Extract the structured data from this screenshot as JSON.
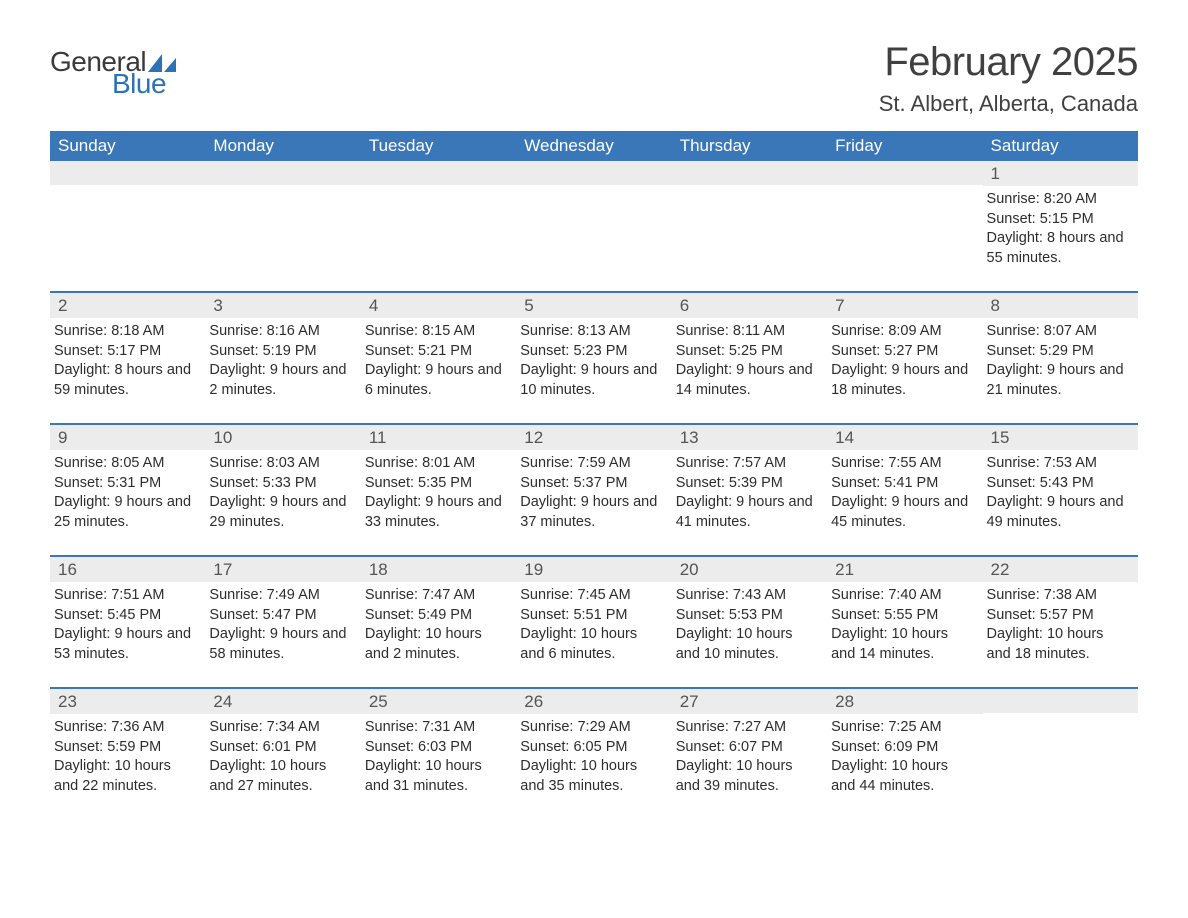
{
  "logo": {
    "general": "General",
    "blue": "Blue",
    "sail_color": "#2e72b5"
  },
  "title": "February 2025",
  "location": "St. Albert, Alberta, Canada",
  "colors": {
    "header_bg": "#3a77b8",
    "header_text": "#ffffff",
    "daynum_bg": "#ececec",
    "border": "#3a77b8",
    "text": "#2d2d2d"
  },
  "weekdays": [
    "Sunday",
    "Monday",
    "Tuesday",
    "Wednesday",
    "Thursday",
    "Friday",
    "Saturday"
  ],
  "weeks": [
    [
      {
        "n": "",
        "sunrise": "",
        "sunset": "",
        "daylight": ""
      },
      {
        "n": "",
        "sunrise": "",
        "sunset": "",
        "daylight": ""
      },
      {
        "n": "",
        "sunrise": "",
        "sunset": "",
        "daylight": ""
      },
      {
        "n": "",
        "sunrise": "",
        "sunset": "",
        "daylight": ""
      },
      {
        "n": "",
        "sunrise": "",
        "sunset": "",
        "daylight": ""
      },
      {
        "n": "",
        "sunrise": "",
        "sunset": "",
        "daylight": ""
      },
      {
        "n": "1",
        "sunrise": "Sunrise: 8:20 AM",
        "sunset": "Sunset: 5:15 PM",
        "daylight": "Daylight: 8 hours and 55 minutes."
      }
    ],
    [
      {
        "n": "2",
        "sunrise": "Sunrise: 8:18 AM",
        "sunset": "Sunset: 5:17 PM",
        "daylight": "Daylight: 8 hours and 59 minutes."
      },
      {
        "n": "3",
        "sunrise": "Sunrise: 8:16 AM",
        "sunset": "Sunset: 5:19 PM",
        "daylight": "Daylight: 9 hours and 2 minutes."
      },
      {
        "n": "4",
        "sunrise": "Sunrise: 8:15 AM",
        "sunset": "Sunset: 5:21 PM",
        "daylight": "Daylight: 9 hours and 6 minutes."
      },
      {
        "n": "5",
        "sunrise": "Sunrise: 8:13 AM",
        "sunset": "Sunset: 5:23 PM",
        "daylight": "Daylight: 9 hours and 10 minutes."
      },
      {
        "n": "6",
        "sunrise": "Sunrise: 8:11 AM",
        "sunset": "Sunset: 5:25 PM",
        "daylight": "Daylight: 9 hours and 14 minutes."
      },
      {
        "n": "7",
        "sunrise": "Sunrise: 8:09 AM",
        "sunset": "Sunset: 5:27 PM",
        "daylight": "Daylight: 9 hours and 18 minutes."
      },
      {
        "n": "8",
        "sunrise": "Sunrise: 8:07 AM",
        "sunset": "Sunset: 5:29 PM",
        "daylight": "Daylight: 9 hours and 21 minutes."
      }
    ],
    [
      {
        "n": "9",
        "sunrise": "Sunrise: 8:05 AM",
        "sunset": "Sunset: 5:31 PM",
        "daylight": "Daylight: 9 hours and 25 minutes."
      },
      {
        "n": "10",
        "sunrise": "Sunrise: 8:03 AM",
        "sunset": "Sunset: 5:33 PM",
        "daylight": "Daylight: 9 hours and 29 minutes."
      },
      {
        "n": "11",
        "sunrise": "Sunrise: 8:01 AM",
        "sunset": "Sunset: 5:35 PM",
        "daylight": "Daylight: 9 hours and 33 minutes."
      },
      {
        "n": "12",
        "sunrise": "Sunrise: 7:59 AM",
        "sunset": "Sunset: 5:37 PM",
        "daylight": "Daylight: 9 hours and 37 minutes."
      },
      {
        "n": "13",
        "sunrise": "Sunrise: 7:57 AM",
        "sunset": "Sunset: 5:39 PM",
        "daylight": "Daylight: 9 hours and 41 minutes."
      },
      {
        "n": "14",
        "sunrise": "Sunrise: 7:55 AM",
        "sunset": "Sunset: 5:41 PM",
        "daylight": "Daylight: 9 hours and 45 minutes."
      },
      {
        "n": "15",
        "sunrise": "Sunrise: 7:53 AM",
        "sunset": "Sunset: 5:43 PM",
        "daylight": "Daylight: 9 hours and 49 minutes."
      }
    ],
    [
      {
        "n": "16",
        "sunrise": "Sunrise: 7:51 AM",
        "sunset": "Sunset: 5:45 PM",
        "daylight": "Daylight: 9 hours and 53 minutes."
      },
      {
        "n": "17",
        "sunrise": "Sunrise: 7:49 AM",
        "sunset": "Sunset: 5:47 PM",
        "daylight": "Daylight: 9 hours and 58 minutes."
      },
      {
        "n": "18",
        "sunrise": "Sunrise: 7:47 AM",
        "sunset": "Sunset: 5:49 PM",
        "daylight": "Daylight: 10 hours and 2 minutes."
      },
      {
        "n": "19",
        "sunrise": "Sunrise: 7:45 AM",
        "sunset": "Sunset: 5:51 PM",
        "daylight": "Daylight: 10 hours and 6 minutes."
      },
      {
        "n": "20",
        "sunrise": "Sunrise: 7:43 AM",
        "sunset": "Sunset: 5:53 PM",
        "daylight": "Daylight: 10 hours and 10 minutes."
      },
      {
        "n": "21",
        "sunrise": "Sunrise: 7:40 AM",
        "sunset": "Sunset: 5:55 PM",
        "daylight": "Daylight: 10 hours and 14 minutes."
      },
      {
        "n": "22",
        "sunrise": "Sunrise: 7:38 AM",
        "sunset": "Sunset: 5:57 PM",
        "daylight": "Daylight: 10 hours and 18 minutes."
      }
    ],
    [
      {
        "n": "23",
        "sunrise": "Sunrise: 7:36 AM",
        "sunset": "Sunset: 5:59 PM",
        "daylight": "Daylight: 10 hours and 22 minutes."
      },
      {
        "n": "24",
        "sunrise": "Sunrise: 7:34 AM",
        "sunset": "Sunset: 6:01 PM",
        "daylight": "Daylight: 10 hours and 27 minutes."
      },
      {
        "n": "25",
        "sunrise": "Sunrise: 7:31 AM",
        "sunset": "Sunset: 6:03 PM",
        "daylight": "Daylight: 10 hours and 31 minutes."
      },
      {
        "n": "26",
        "sunrise": "Sunrise: 7:29 AM",
        "sunset": "Sunset: 6:05 PM",
        "daylight": "Daylight: 10 hours and 35 minutes."
      },
      {
        "n": "27",
        "sunrise": "Sunrise: 7:27 AM",
        "sunset": "Sunset: 6:07 PM",
        "daylight": "Daylight: 10 hours and 39 minutes."
      },
      {
        "n": "28",
        "sunrise": "Sunrise: 7:25 AM",
        "sunset": "Sunset: 6:09 PM",
        "daylight": "Daylight: 10 hours and 44 minutes."
      },
      {
        "n": "",
        "sunrise": "",
        "sunset": "",
        "daylight": ""
      }
    ]
  ]
}
